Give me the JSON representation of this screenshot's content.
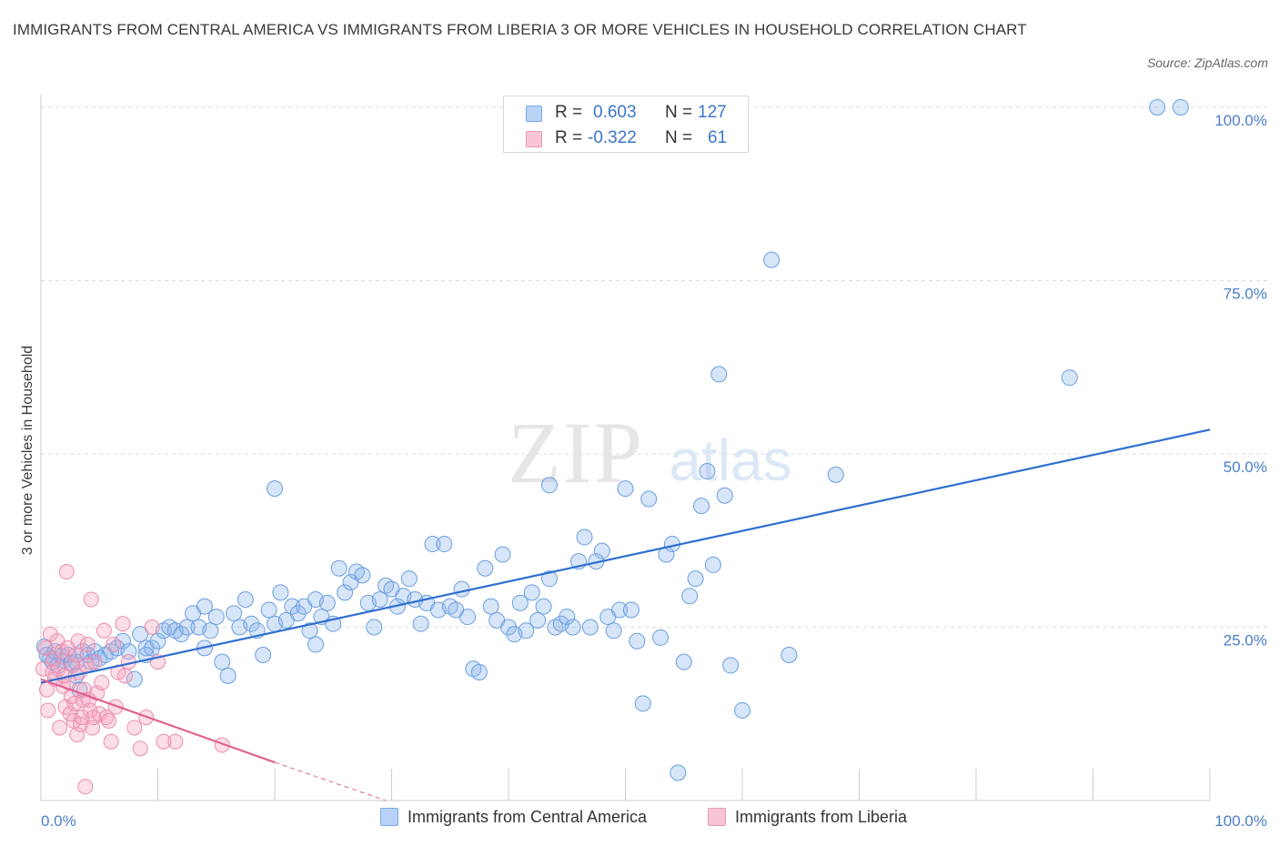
{
  "title": "IMMIGRANTS FROM CENTRAL AMERICA VS IMMIGRANTS FROM LIBERIA 3 OR MORE VEHICLES IN HOUSEHOLD CORRELATION CHART",
  "source": "Source: ZipAtlas.com",
  "watermark": {
    "zip": "ZIP",
    "atlas": "atlas"
  },
  "legend": {
    "rows": [
      {
        "r_label": "R =",
        "r_value": "0.603",
        "n_label": "N =",
        "n_value": "127",
        "fill": "#b8d3f5",
        "stroke": "#7aa8e6"
      },
      {
        "r_label": "R =",
        "r_value": "-0.322",
        "n_label": "N =",
        "n_value": "61",
        "fill": "#f8c5d5",
        "stroke": "#ee98b3"
      }
    ]
  },
  "colors": {
    "blue_fill": "rgba(140,180,235,0.35)",
    "blue_stroke": "#6a9fe0",
    "blue_line": "#2f6fd0",
    "pink_fill": "rgba(245,160,190,0.35)",
    "pink_stroke": "#ea8cae",
    "pink_line": "#e0628f",
    "tick_text": "#4a7ec9",
    "grid": "#dddddd"
  },
  "chart_data": {
    "type": "scatter",
    "title": "IMMIGRANTS FROM CENTRAL AMERICA VS IMMIGRANTS FROM LIBERIA 3 OR MORE VEHICLES IN HOUSEHOLD CORRELATION CHART",
    "xlabel": "",
    "ylabel": "3 or more Vehicles in Household",
    "xlim": [
      0,
      100
    ],
    "ylim": [
      0,
      100
    ],
    "x_tick_labels": [
      "0.0%",
      "100.0%"
    ],
    "y_ticks": [
      {
        "value": 25,
        "label": "25.0%"
      },
      {
        "value": 50,
        "label": "50.0%"
      },
      {
        "value": 75,
        "label": "75.0%"
      },
      {
        "value": 100,
        "label": "100.0%"
      }
    ],
    "grid": true,
    "legend_position": "bottom",
    "series": [
      {
        "name": "Immigrants from Central America",
        "R": 0.603,
        "N": 127,
        "trend": {
          "x": [
            0,
            100
          ],
          "y": [
            17.0,
            53.5
          ]
        },
        "points": [
          [
            0.3,
            22.2
          ],
          [
            0.5,
            21.0
          ],
          [
            0.8,
            20.5
          ],
          [
            1.0,
            20.0
          ],
          [
            1.2,
            21.5
          ],
          [
            1.5,
            19.5
          ],
          [
            1.8,
            20.8
          ],
          [
            2.0,
            20.2
          ],
          [
            2.3,
            21.0
          ],
          [
            2.6,
            19.8
          ],
          [
            3.0,
            20.0
          ],
          [
            3.3,
            16.0
          ],
          [
            3.6,
            21.5
          ],
          [
            4.0,
            21.0
          ],
          [
            4.3,
            20.0
          ],
          [
            4.6,
            21.5
          ],
          [
            5.0,
            20.5
          ],
          [
            5.5,
            21.0
          ],
          [
            6.0,
            21.5
          ],
          [
            6.5,
            22.0
          ],
          [
            7.0,
            23.0
          ],
          [
            7.5,
            21.5
          ],
          [
            8.0,
            17.5
          ],
          [
            8.5,
            24.0
          ],
          [
            9.0,
            22.0
          ],
          [
            9.5,
            22.0
          ],
          [
            10.0,
            23.0
          ],
          [
            10.5,
            24.5
          ],
          [
            11.0,
            25.0
          ],
          [
            11.5,
            24.5
          ],
          [
            12.0,
            24.0
          ],
          [
            12.5,
            25.0
          ],
          [
            13.0,
            27.0
          ],
          [
            13.5,
            25.0
          ],
          [
            14.0,
            28.0
          ],
          [
            14.5,
            24.5
          ],
          [
            15.0,
            26.5
          ],
          [
            15.5,
            20.0
          ],
          [
            16.0,
            18.0
          ],
          [
            16.5,
            27.0
          ],
          [
            17.0,
            25.0
          ],
          [
            17.5,
            29.0
          ],
          [
            18.0,
            25.5
          ],
          [
            18.5,
            24.5
          ],
          [
            19.0,
            21.0
          ],
          [
            19.5,
            27.5
          ],
          [
            20.0,
            25.5
          ],
          [
            20.5,
            30.0
          ],
          [
            21.0,
            26.0
          ],
          [
            21.5,
            28.0
          ],
          [
            22.0,
            27.0
          ],
          [
            22.5,
            28.0
          ],
          [
            23.0,
            24.5
          ],
          [
            23.5,
            29.0
          ],
          [
            24.0,
            26.5
          ],
          [
            24.5,
            28.5
          ],
          [
            25.0,
            25.5
          ],
          [
            25.5,
            33.5
          ],
          [
            26.0,
            30.0
          ],
          [
            26.5,
            31.5
          ],
          [
            27.0,
            33.0
          ],
          [
            27.5,
            32.5
          ],
          [
            28.0,
            28.5
          ],
          [
            28.5,
            25.0
          ],
          [
            29.0,
            29.0
          ],
          [
            29.5,
            31.0
          ],
          [
            30.0,
            30.5
          ],
          [
            30.5,
            28.0
          ],
          [
            31.0,
            29.5
          ],
          [
            31.5,
            32.0
          ],
          [
            32.0,
            29.0
          ],
          [
            32.5,
            25.5
          ],
          [
            33.0,
            28.5
          ],
          [
            33.5,
            37.0
          ],
          [
            34.0,
            27.5
          ],
          [
            34.5,
            37.0
          ],
          [
            35.0,
            28.0
          ],
          [
            35.5,
            27.5
          ],
          [
            36.0,
            30.5
          ],
          [
            36.5,
            26.5
          ],
          [
            37.0,
            19.0
          ],
          [
            37.5,
            18.5
          ],
          [
            38.0,
            33.5
          ],
          [
            38.5,
            28.0
          ],
          [
            39.0,
            26.0
          ],
          [
            39.5,
            35.5
          ],
          [
            40.0,
            25.0
          ],
          [
            40.5,
            24.0
          ],
          [
            41.0,
            28.5
          ],
          [
            41.5,
            24.5
          ],
          [
            42.0,
            30.0
          ],
          [
            42.5,
            26.0
          ],
          [
            43.0,
            28.0
          ],
          [
            43.5,
            32.0
          ],
          [
            44.0,
            25.0
          ],
          [
            44.5,
            25.5
          ],
          [
            45.0,
            26.5
          ],
          [
            45.5,
            25.0
          ],
          [
            46.0,
            34.5
          ],
          [
            46.5,
            38.0
          ],
          [
            47.0,
            25.0
          ],
          [
            47.5,
            34.5
          ],
          [
            48.0,
            36.0
          ],
          [
            48.5,
            26.5
          ],
          [
            49.0,
            24.5
          ],
          [
            49.5,
            27.5
          ],
          [
            50.0,
            45.0
          ],
          [
            50.5,
            27.5
          ],
          [
            51.0,
            23.0
          ],
          [
            51.5,
            14.0
          ],
          [
            52.0,
            43.5
          ],
          [
            53.0,
            23.5
          ],
          [
            53.5,
            35.5
          ],
          [
            54.0,
            37.0
          ],
          [
            54.5,
            4.0
          ],
          [
            55.0,
            20.0
          ],
          [
            55.5,
            29.5
          ],
          [
            56.0,
            32.0
          ],
          [
            56.5,
            42.5
          ],
          [
            57.0,
            47.5
          ],
          [
            57.5,
            34.0
          ],
          [
            58.0,
            61.5
          ],
          [
            58.5,
            44.0
          ],
          [
            59.0,
            19.5
          ],
          [
            60.0,
            13.0
          ],
          [
            62.5,
            78.0
          ],
          [
            64.0,
            21.0
          ],
          [
            68.0,
            47.0
          ],
          [
            88.0,
            61.0
          ],
          [
            95.5,
            100.0
          ],
          [
            97.5,
            100.0
          ],
          [
            43.5,
            45.5
          ],
          [
            20.0,
            45.0
          ],
          [
            23.5,
            22.5
          ],
          [
            3.0,
            18.0
          ],
          [
            9.0,
            21.0
          ],
          [
            14.0,
            22.0
          ]
        ]
      },
      {
        "name": "Immigrants from Liberia",
        "R": -0.322,
        "N": 61,
        "trend": {
          "x": [
            0,
            20
          ],
          "y": [
            17.5,
            5.5
          ]
        },
        "trend_extension": {
          "x": [
            20,
            29.5
          ],
          "y": [
            5.5,
            0
          ]
        },
        "points": [
          [
            0.2,
            19.0
          ],
          [
            0.4,
            22.0
          ],
          [
            0.5,
            16.0
          ],
          [
            0.6,
            13.0
          ],
          [
            0.8,
            24.0
          ],
          [
            1.0,
            18.5
          ],
          [
            1.1,
            20.5
          ],
          [
            1.2,
            17.5
          ],
          [
            1.4,
            23.0
          ],
          [
            1.5,
            19.0
          ],
          [
            1.6,
            10.5
          ],
          [
            1.8,
            21.5
          ],
          [
            1.9,
            16.5
          ],
          [
            2.0,
            18.0
          ],
          [
            2.1,
            13.5
          ],
          [
            2.2,
            33.0
          ],
          [
            2.3,
            22.0
          ],
          [
            2.4,
            17.0
          ],
          [
            2.5,
            12.5
          ],
          [
            2.6,
            15.0
          ],
          [
            2.7,
            19.5
          ],
          [
            2.8,
            11.5
          ],
          [
            2.9,
            14.0
          ],
          [
            3.0,
            21.0
          ],
          [
            3.1,
            9.5
          ],
          [
            3.2,
            23.0
          ],
          [
            3.3,
            18.5
          ],
          [
            3.4,
            11.0
          ],
          [
            3.5,
            12.0
          ],
          [
            3.6,
            14.5
          ],
          [
            3.7,
            16.0
          ],
          [
            3.8,
            2.0
          ],
          [
            3.9,
            19.5
          ],
          [
            4.0,
            22.5
          ],
          [
            4.1,
            14.5
          ],
          [
            4.2,
            13.0
          ],
          [
            4.3,
            29.0
          ],
          [
            4.4,
            10.5
          ],
          [
            4.5,
            12.0
          ],
          [
            4.6,
            20.0
          ],
          [
            4.8,
            15.5
          ],
          [
            5.0,
            12.5
          ],
          [
            5.2,
            17.0
          ],
          [
            5.4,
            24.5
          ],
          [
            5.6,
            12.0
          ],
          [
            5.8,
            11.5
          ],
          [
            6.0,
            8.5
          ],
          [
            6.2,
            22.5
          ],
          [
            6.4,
            13.5
          ],
          [
            6.6,
            18.5
          ],
          [
            7.0,
            25.5
          ],
          [
            7.2,
            18.0
          ],
          [
            7.5,
            20.0
          ],
          [
            8.0,
            10.5
          ],
          [
            8.5,
            7.5
          ],
          [
            9.0,
            12.0
          ],
          [
            9.5,
            25.0
          ],
          [
            10.0,
            20.0
          ],
          [
            10.5,
            8.5
          ],
          [
            11.5,
            8.5
          ],
          [
            15.5,
            8.0
          ]
        ]
      }
    ]
  },
  "bottom_legend": {
    "items": [
      {
        "label": "Immigrants from Central America",
        "fill": "#b8d3f5",
        "stroke": "#7aa8e6"
      },
      {
        "label": "Immigrants from Liberia",
        "fill": "#f8c5d5",
        "stroke": "#ee98b3"
      }
    ]
  }
}
